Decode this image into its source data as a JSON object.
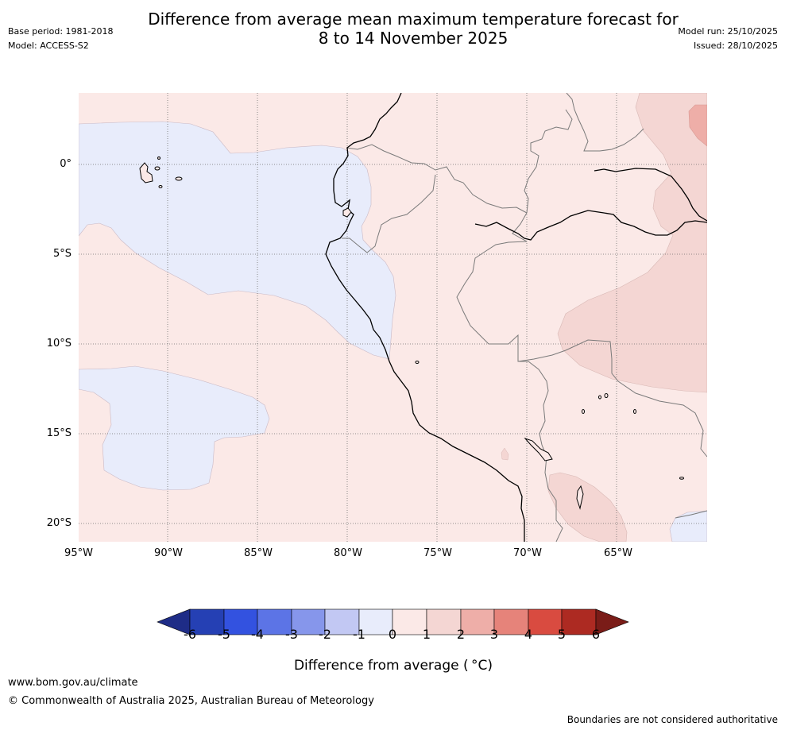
{
  "header": {
    "title_line1": "Difference from average mean maximum temperature forecast for",
    "title_line2": "8 to 14 November 2025",
    "base_period": "Base period: 1981-2018",
    "model": "Model: ACCESS-S2",
    "model_run": "Model run: 25/10/2025",
    "issued": "Issued: 28/10/2025"
  },
  "map": {
    "region": "Western South America and adjacent Pacific Ocean",
    "longitude_labels": [
      "95°W",
      "90°W",
      "85°W",
      "80°W",
      "75°W",
      "70°W",
      "65°W"
    ],
    "latitude_labels": [
      "0°",
      "5°S",
      "10°S",
      "15°S",
      "20°S"
    ],
    "categories": [
      {
        "name": "near average (0 to 1)",
        "color": "#fbe9e7"
      },
      {
        "name": "slightly below (-1 to 0)",
        "color": "#e8ecfb"
      },
      {
        "name": "above (1 to 2)",
        "color": "#f4d6d3"
      },
      {
        "name": "warmer (2 to 3)",
        "color": "#eeaea8"
      }
    ]
  },
  "colorbar": {
    "ticks": [
      "-6",
      "-5",
      "-4",
      "-3",
      "-2",
      "-1",
      "0",
      "1",
      "2",
      "3",
      "4",
      "5",
      "6"
    ],
    "colors": [
      "#1e2c87",
      "#2540b4",
      "#3352e0",
      "#5c74e6",
      "#8696eb",
      "#c2c8f3",
      "#e8ecfb",
      "#fbe9e7",
      "#f4d6d3",
      "#eeaea8",
      "#e6837a",
      "#d94b40",
      "#ad2a22",
      "#7a1c18"
    ],
    "title": "Difference from average ( °C)"
  },
  "footer": {
    "url": "www.bom.gov.au/climate",
    "copyright": "© Commonwealth of Australia 2025, Australian Bureau of Meteorology",
    "note": "Boundaries are not considered authoritative"
  }
}
